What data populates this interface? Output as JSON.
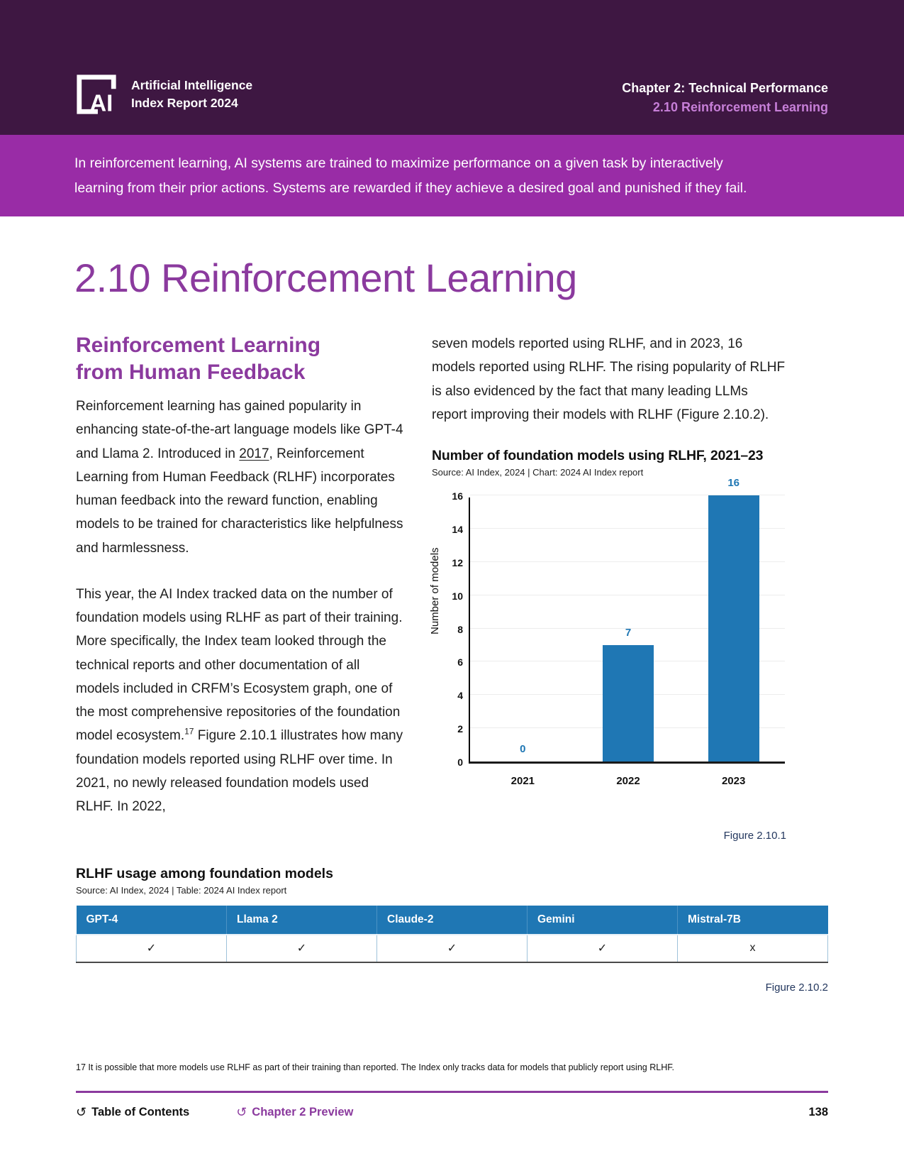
{
  "header": {
    "logo_line1": "Artificial Intelligence",
    "logo_line2": "Index Report 2024",
    "chapter": "Chapter 2: Technical Performance",
    "section": "2.10 Reinforcement Learning"
  },
  "banner": {
    "text": "In reinforcement learning, AI systems are trained to maximize performance on a given task by interactively learning from their prior actions. Systems are rewarded if they achieve a desired goal and punished if they fail."
  },
  "page_title": "2.10 Reinforcement Learning",
  "article": {
    "heading": "Reinforcement Learning from Human Feedback",
    "para1_before_link": "Reinforcement learning has gained popularity in enhancing state-of-the-art language models like GPT-4 and Llama 2. Introduced in ",
    "para1_link": "2017",
    "para1_after_link": ", Reinforcement Learning from Human Feedback (RLHF) incorporates human feedback into the reward function, enabling models to be trained for characteristics like helpfulness and harmlessness.",
    "para2_main": "This year, the AI Index tracked data on the number of foundation models using RLHF as part of their training. More specifically, the Index team looked through the technical reports and other documentation of all models included in CRFM’s Ecosystem graph, one of the most comprehensive repositories of the foundation model ecosystem.",
    "para2_footnote_ref": "17",
    "para2_rest": " Figure 2.10.1 illustrates how many foundation models reported using RLHF over time. In 2021, no newly released foundation models used RLHF. In 2022,",
    "para3": "seven models reported using RLHF, and in 2023, 16 models reported using RLHF. The rising popularity of RLHF is also evidenced by the fact that many leading LLMs report improving their models with RLHF (Figure 2.10.2)."
  },
  "chart_data": {
    "type": "bar",
    "title": "Number of foundation models using RLHF, 2021–23",
    "source": "Source: AI Index, 2024 | Chart: 2024 AI Index report",
    "categories": [
      "2021",
      "2022",
      "2023"
    ],
    "values": [
      0,
      7,
      16
    ],
    "xlabel": "",
    "ylabel": "Number of models",
    "ylim": [
      0,
      16
    ],
    "ytick_step": 2,
    "grid": true,
    "legend_position": "none",
    "bar_color": "#1f77b4",
    "caption": "Figure 2.10.1"
  },
  "table": {
    "title": "RLHF usage among foundation models",
    "source": "Source: AI Index, 2024 | Table: 2024 AI Index report",
    "columns": [
      "GPT-4",
      "Llama 2",
      "Claude-2",
      "Gemini",
      "Mistral-7B"
    ],
    "values": [
      "✓",
      "✓",
      "✓",
      "✓",
      "x"
    ],
    "header_color": "#1f77b4",
    "caption": "Figure 2.10.2"
  },
  "footnote": "17 It is possible that more models use RLHF as part of their training than reported. The Index only tracks data for models that publicly report using RLHF.",
  "footer": {
    "toc_label": "Table of Contents",
    "preview_label": "Chapter 2 Preview",
    "page_number": "138"
  },
  "colors": {
    "header_bg": "#3e1742",
    "banner_bg": "#992ca6",
    "accent_purple": "#8b3a9e",
    "section_link_purple": "#c77fd8",
    "bar_blue": "#1f77b4",
    "caption_navy": "#23375e"
  }
}
